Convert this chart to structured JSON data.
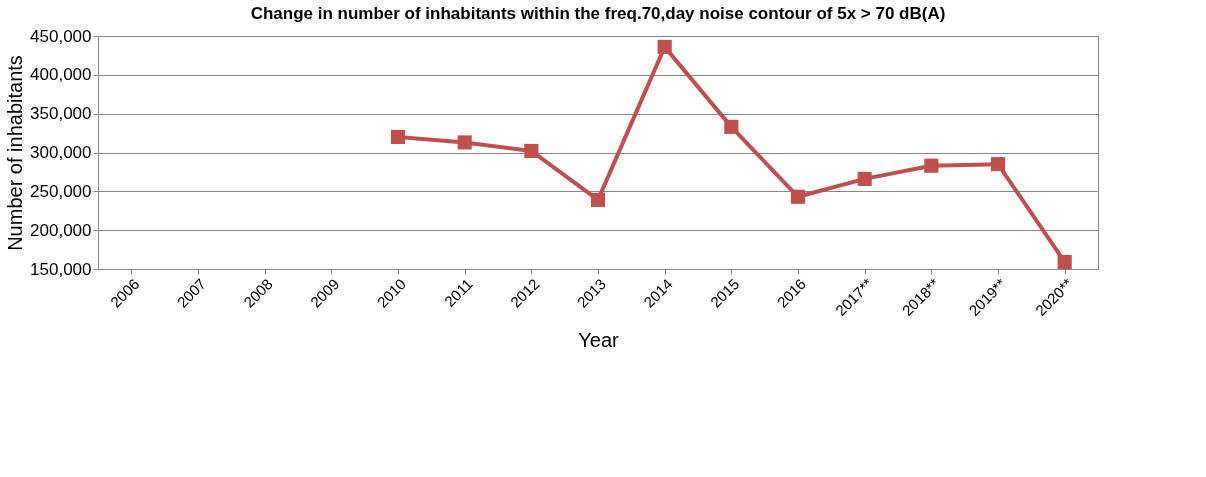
{
  "chart_data": {
    "type": "line",
    "title": "Change in number of inhabitants within the freq.70,day noise contour of  5x > 70 dB(A)",
    "xlabel": "Year",
    "ylabel": "Number of inhabitants",
    "categories": [
      "2006",
      "2007",
      "2008",
      "2009",
      "2010",
      "2011",
      "2012",
      "2013",
      "2014",
      "2015",
      "2016",
      "2017**",
      "2018**",
      "2019**",
      "2020**"
    ],
    "series": [
      {
        "color": "#c0504d",
        "values": [
          null,
          null,
          null,
          null,
          320000,
          313000,
          302000,
          239000,
          436000,
          333000,
          243000,
          266000,
          283000,
          285000,
          159000
        ]
      }
    ],
    "ylim": [
      150000,
      450000
    ],
    "yticks": [
      {
        "value": 150000,
        "label": "150,000"
      },
      {
        "value": 200000,
        "label": "200,000"
      },
      {
        "value": 250000,
        "label": "250,000"
      },
      {
        "value": 300000,
        "label": "300,000"
      },
      {
        "value": 350000,
        "label": "350,000"
      },
      {
        "value": 400000,
        "label": "400,000"
      },
      {
        "value": 450000,
        "label": "450,000"
      }
    ],
    "grid": "y",
    "marker": "square",
    "line_style": "solid"
  }
}
